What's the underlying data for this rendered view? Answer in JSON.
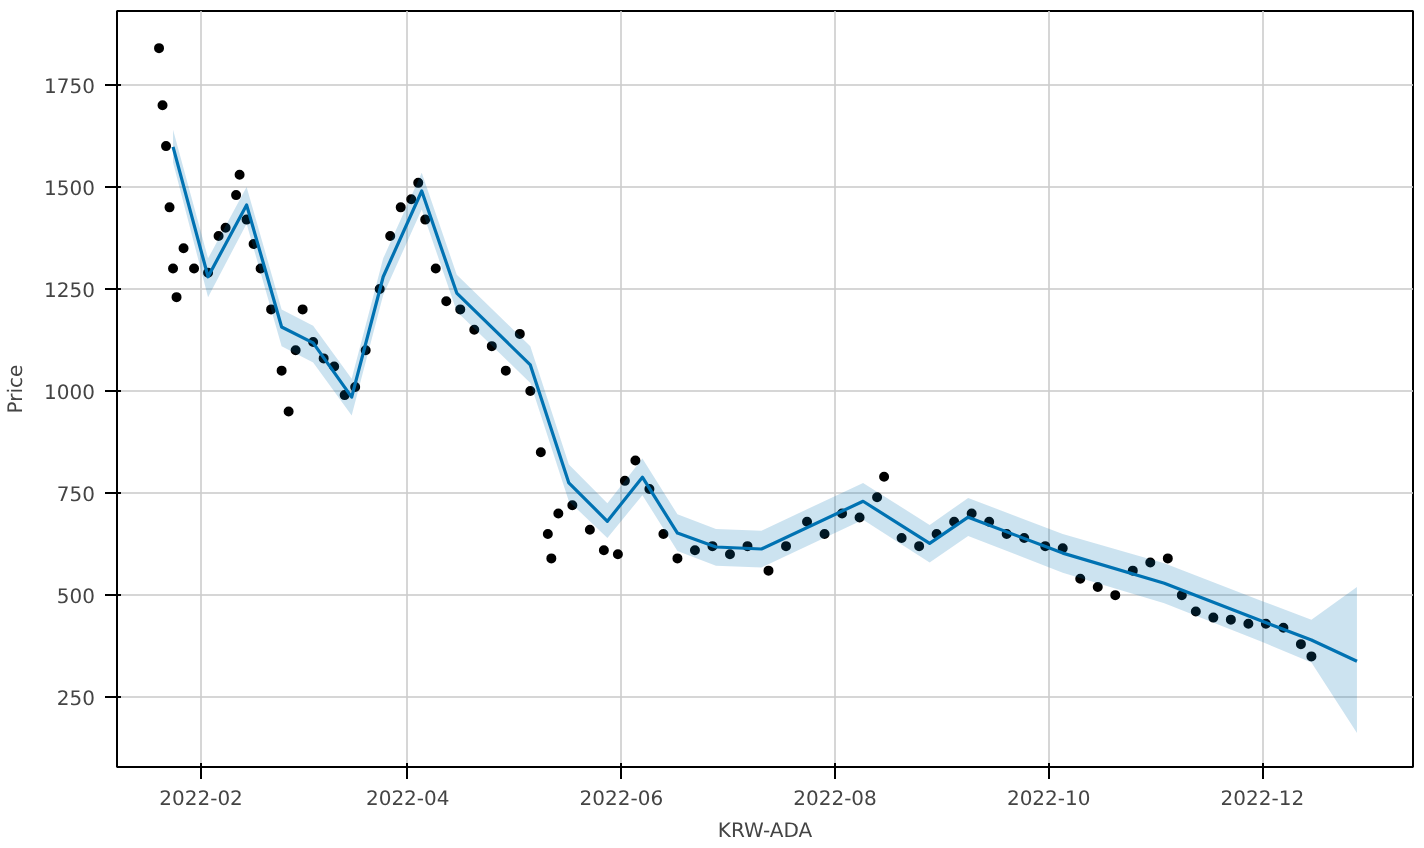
{
  "chart_data": {
    "type": "line",
    "xlabel": "KRW-ADA",
    "ylabel": "Price",
    "xlim": [
      "2022-01-08",
      "2023-01-13"
    ],
    "ylim": [
      79,
      1931
    ],
    "xticks": [
      "2022-02",
      "2022-04",
      "2022-06",
      "2022-08",
      "2022-10",
      "2022-12"
    ],
    "yticks": [
      250,
      500,
      750,
      1000,
      1250,
      1500,
      1750
    ],
    "grid": true,
    "series": [
      {
        "type": "scatter",
        "marker": "circle",
        "color": "#000000",
        "x": [
          "2022-01-20",
          "2022-01-21",
          "2022-01-22",
          "2022-01-23",
          "2022-01-24",
          "2022-01-25",
          "2022-01-27",
          "2022-01-30",
          "2022-02-03",
          "2022-02-06",
          "2022-02-08",
          "2022-02-11",
          "2022-02-12",
          "2022-02-14",
          "2022-02-16",
          "2022-02-18",
          "2022-02-21",
          "2022-02-24",
          "2022-02-26",
          "2022-02-28",
          "2022-03-02",
          "2022-03-05",
          "2022-03-08",
          "2022-03-11",
          "2022-03-14",
          "2022-03-17",
          "2022-03-20",
          "2022-03-24",
          "2022-03-27",
          "2022-03-30",
          "2022-04-02",
          "2022-04-04",
          "2022-04-06",
          "2022-04-09",
          "2022-04-12",
          "2022-04-16",
          "2022-04-20",
          "2022-04-25",
          "2022-04-29",
          "2022-05-03",
          "2022-05-06",
          "2022-05-09",
          "2022-05-11",
          "2022-05-12",
          "2022-05-14",
          "2022-05-18",
          "2022-05-23",
          "2022-05-27",
          "2022-05-31",
          "2022-06-02",
          "2022-06-05",
          "2022-06-09",
          "2022-06-13",
          "2022-06-17",
          "2022-06-22",
          "2022-06-27",
          "2022-07-02",
          "2022-07-07",
          "2022-07-13",
          "2022-07-18",
          "2022-07-24",
          "2022-07-29",
          "2022-08-03",
          "2022-08-08",
          "2022-08-13",
          "2022-08-15",
          "2022-08-20",
          "2022-08-25",
          "2022-08-30",
          "2022-09-04",
          "2022-09-09",
          "2022-09-14",
          "2022-09-19",
          "2022-09-24",
          "2022-09-30",
          "2022-10-05",
          "2022-10-10",
          "2022-10-15",
          "2022-10-20",
          "2022-10-25",
          "2022-10-30",
          "2022-11-04",
          "2022-11-08",
          "2022-11-12",
          "2022-11-17",
          "2022-11-22",
          "2022-11-27",
          "2022-12-02",
          "2022-12-07",
          "2022-12-12",
          "2022-12-15"
        ],
        "values": [
          1840,
          1700,
          1600,
          1450,
          1300,
          1230,
          1350,
          1300,
          1290,
          1380,
          1400,
          1480,
          1530,
          1420,
          1360,
          1300,
          1200,
          1050,
          950,
          1100,
          1200,
          1120,
          1080,
          1060,
          990,
          1010,
          1100,
          1250,
          1380,
          1450,
          1470,
          1510,
          1420,
          1300,
          1220,
          1200,
          1150,
          1110,
          1050,
          1140,
          1000,
          850,
          650,
          590,
          700,
          720,
          660,
          610,
          600,
          780,
          830,
          760,
          650,
          590,
          610,
          620,
          600,
          620,
          560,
          620,
          680,
          650,
          700,
          690,
          740,
          790,
          640,
          620,
          650,
          680,
          700,
          680,
          650,
          640,
          620,
          615,
          540,
          520,
          500,
          560,
          580,
          590,
          500,
          460,
          445,
          440,
          430,
          430,
          420,
          380,
          350
        ]
      },
      {
        "color": "#0072b2",
        "x": [
          "2022-01-24",
          "2022-02-03",
          "2022-02-14",
          "2022-02-24",
          "2022-03-05",
          "2022-03-16",
          "2022-03-25",
          "2022-04-05",
          "2022-04-15",
          "2022-05-06",
          "2022-05-17",
          "2022-05-28",
          "2022-06-07",
          "2022-06-17",
          "2022-06-28",
          "2022-07-11",
          "2022-08-09",
          "2022-08-28",
          "2022-09-08",
          "2022-10-05",
          "2022-11-03",
          "2022-12-01",
          "2022-12-15",
          "2022-12-28"
        ],
        "values": [
          1598,
          1280,
          1456,
          1157,
          1118,
          985,
          1280,
          1490,
          1240,
          1064,
          775,
          681,
          789,
          652,
          618,
          613,
          730,
          627,
          691,
          603,
          529,
          436,
          390,
          338
        ],
        "lower": [
          1560,
          1230,
          1410,
          1110,
          1070,
          940,
          1235,
          1445,
          1195,
          1020,
          730,
          640,
          745,
          608,
          572,
          568,
          685,
          580,
          645,
          555,
          480,
          385,
          335,
          162
        ],
        "upper": [
          1640,
          1325,
          1500,
          1200,
          1160,
          1030,
          1325,
          1535,
          1285,
          1110,
          820,
          725,
          835,
          698,
          662,
          658,
          775,
          672,
          738,
          650,
          578,
          485,
          440,
          520
        ]
      }
    ]
  }
}
